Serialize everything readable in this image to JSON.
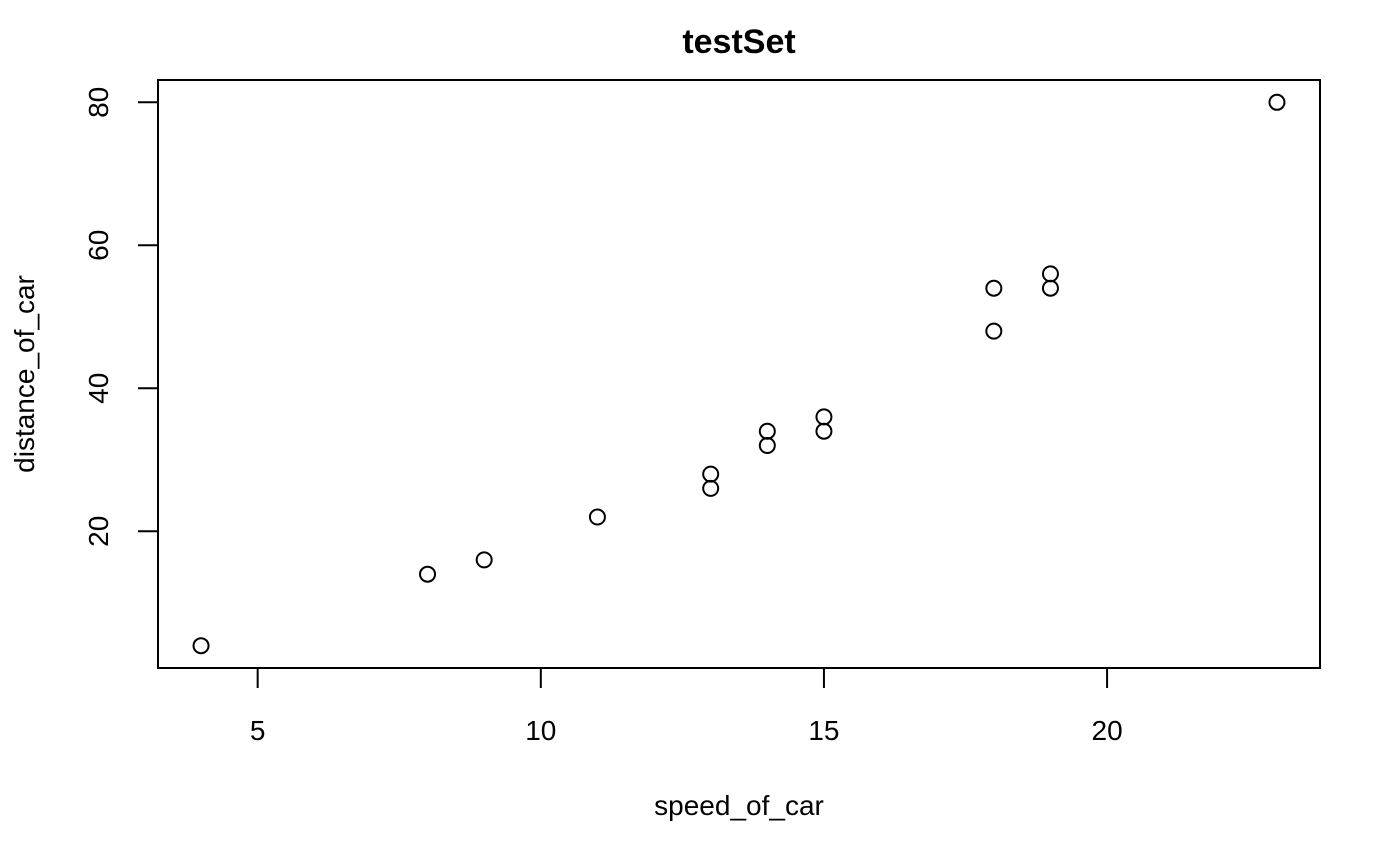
{
  "chart_data": {
    "type": "scatter",
    "title": "testSet",
    "xlabel": "speed_of_car",
    "ylabel": "distance_of_car",
    "xlim": [
      3.24,
      23.76
    ],
    "ylim": [
      0.88,
      83.12
    ],
    "xticks": [
      5,
      10,
      15,
      20
    ],
    "yticks": [
      20,
      40,
      60,
      80
    ],
    "grid": false,
    "legend": "none",
    "marker": "open-circle",
    "points": [
      {
        "x": 4,
        "y": 4
      },
      {
        "x": 8,
        "y": 14
      },
      {
        "x": 9,
        "y": 16
      },
      {
        "x": 11,
        "y": 22
      },
      {
        "x": 13,
        "y": 26
      },
      {
        "x": 13,
        "y": 28
      },
      {
        "x": 14,
        "y": 32
      },
      {
        "x": 14,
        "y": 34
      },
      {
        "x": 15,
        "y": 34
      },
      {
        "x": 15,
        "y": 36
      },
      {
        "x": 18,
        "y": 48
      },
      {
        "x": 18,
        "y": 54
      },
      {
        "x": 19,
        "y": 54
      },
      {
        "x": 19,
        "y": 56
      },
      {
        "x": 23,
        "y": 80
      }
    ]
  }
}
